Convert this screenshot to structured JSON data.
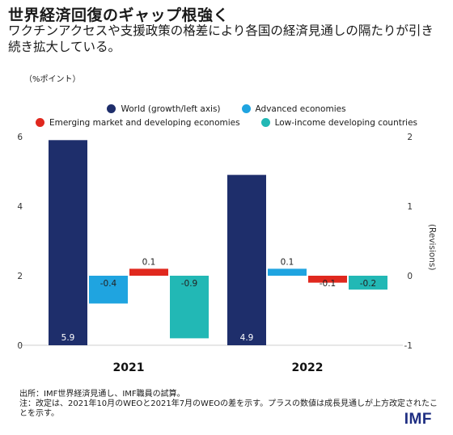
{
  "header": {
    "title": "世界経済回復のギャップ根強く",
    "subtitle": "ワクチンアクセスや支援政策の格差により各国の経済見通しの隔たりが引き続き拡大している。",
    "unit": "（%ポイント）"
  },
  "footer": {
    "source": "出所：IMF世界経済見通し、IMF職員の試算。",
    "note": "注：改定は、2021年10月のWEOと2021年7月のWEOの差を示す。プラスの数値は成長見通しが上方改定されたことを示す。",
    "logo": "IMF"
  },
  "chart_data": {
    "type": "bar",
    "categories": [
      "2021",
      "2022"
    ],
    "series": [
      {
        "name": "World (growth/left axis)",
        "axis": "left",
        "color": "#1e2e6b",
        "values": [
          5.9,
          4.9
        ],
        "labels": [
          "5.9",
          "4.9"
        ]
      },
      {
        "name": "Advanced economies",
        "axis": "right",
        "color": "#1fa4e0",
        "values": [
          -0.4,
          0.1
        ],
        "labels": [
          "-0.4",
          "0.1"
        ]
      },
      {
        "name": "Emerging market and developing economies",
        "axis": "right",
        "color": "#e0281e",
        "values": [
          0.1,
          -0.1
        ],
        "labels": [
          "0.1",
          "-0.1"
        ]
      },
      {
        "name": "Low-income developing countries",
        "axis": "right",
        "color": "#22b8b5",
        "values": [
          -0.9,
          -0.2
        ],
        "labels": [
          "-0.9",
          "-0.2"
        ]
      }
    ],
    "y_left": {
      "min": 0,
      "max": 6,
      "ticks": [
        "0",
        "2",
        "4",
        "6"
      ]
    },
    "y_right": {
      "min": -1,
      "max": 2,
      "ticks": [
        "-1",
        "0",
        "1",
        "2"
      ],
      "label": "(Revisions)"
    },
    "legend_position": "top-center",
    "grid": false
  }
}
